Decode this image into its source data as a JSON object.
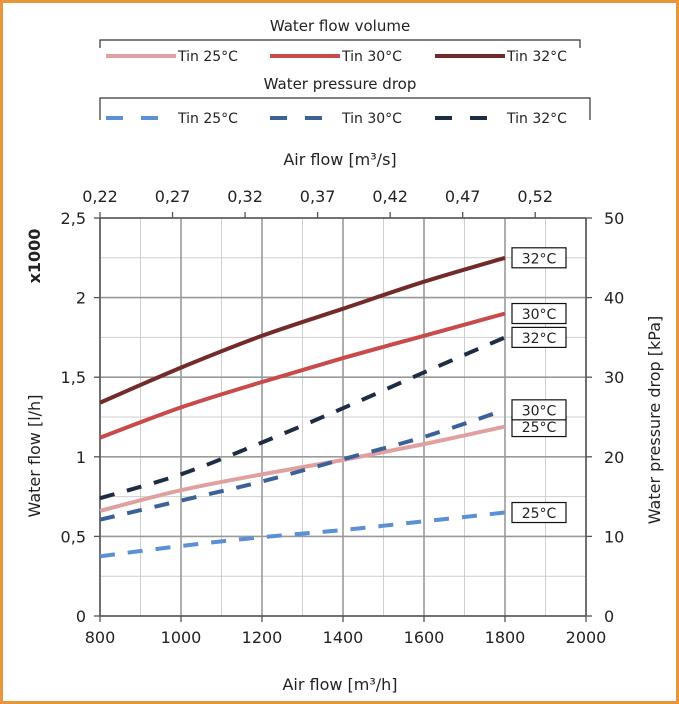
{
  "chart_data": {
    "type": "line",
    "legend_top": {
      "title": "Water flow volume",
      "entries": [
        "Tin 25°C",
        "Tin 30°C",
        "Tin 32°C"
      ]
    },
    "legend_bottom": {
      "title": "Water pressure drop",
      "entries": [
        "Tin 25°C",
        "Tin 30°C",
        "Tin 32°C"
      ]
    },
    "x_bottom": {
      "label": "Air flow [m³/h]",
      "range": [
        800,
        2000
      ],
      "ticks": [
        800,
        1000,
        1200,
        1400,
        1600,
        1800,
        2000
      ],
      "tick_labels": [
        "800",
        "1000",
        "1200",
        "1400",
        "1600",
        "1800",
        "2000"
      ]
    },
    "x_top": {
      "label": "Air flow [m³/s]",
      "range": [
        0.22,
        0.555
      ],
      "ticks": [
        0.22,
        0.27,
        0.32,
        0.37,
        0.42,
        0.47,
        0.52
      ],
      "tick_labels": [
        "0,22",
        "0,27",
        "0,32",
        "0,37",
        "0,42",
        "0,47",
        "0,52"
      ]
    },
    "y_left": {
      "label": "Water flow [l/h]",
      "multiplier": "x1000",
      "range": [
        0,
        2.5
      ],
      "ticks": [
        0,
        0.5,
        1,
        1.5,
        2,
        2.5
      ],
      "tick_labels": [
        "0",
        "0,5",
        "1",
        "1,5",
        "2",
        "2,5"
      ]
    },
    "y_right": {
      "label": "Water pressure drop [kPa]",
      "range": [
        0,
        50
      ],
      "ticks": [
        0,
        10,
        20,
        30,
        40,
        50
      ],
      "tick_labels": [
        "0",
        "10",
        "20",
        "30",
        "40",
        "50"
      ]
    },
    "grid": true,
    "series": [
      {
        "group": "flow",
        "axis": "left",
        "style": "solid",
        "color": "#e0a0a0",
        "label": "25°C",
        "x": [
          800,
          1000,
          1200,
          1400,
          1600,
          1800
        ],
        "values": [
          0.66,
          0.79,
          0.89,
          0.98,
          1.08,
          1.19
        ]
      },
      {
        "group": "flow",
        "axis": "left",
        "style": "solid",
        "color": "#c94a4a",
        "label": "30°C",
        "x": [
          800,
          1000,
          1200,
          1400,
          1600,
          1800
        ],
        "values": [
          1.12,
          1.31,
          1.47,
          1.62,
          1.76,
          1.9
        ]
      },
      {
        "group": "flow",
        "axis": "left",
        "style": "solid",
        "color": "#732a2a",
        "label": "32°C",
        "x": [
          800,
          1000,
          1200,
          1400,
          1600,
          1800
        ],
        "values": [
          1.34,
          1.56,
          1.76,
          1.93,
          2.1,
          2.25
        ]
      },
      {
        "group": "pressure",
        "axis": "right",
        "style": "dashed",
        "color": "#5b8fd6",
        "label": "25°C",
        "x": [
          800,
          1000,
          1200,
          1400,
          1600,
          1800
        ],
        "values": [
          7.5,
          8.8,
          9.9,
          10.8,
          11.9,
          13
        ]
      },
      {
        "group": "pressure",
        "axis": "right",
        "style": "dashed",
        "color": "#3c6199",
        "label": "30°C",
        "x": [
          800,
          1000,
          1200,
          1400,
          1600,
          1800
        ],
        "values": [
          12.1,
          14.5,
          16.9,
          19.7,
          22.5,
          25.9
        ]
      },
      {
        "group": "pressure",
        "axis": "right",
        "style": "dashed",
        "color": "#1f2d44",
        "label": "32°C",
        "x": [
          800,
          1000,
          1200,
          1400,
          1600,
          1800
        ],
        "values": [
          14.8,
          17.8,
          21.8,
          26.1,
          30.6,
          35
        ]
      }
    ]
  }
}
